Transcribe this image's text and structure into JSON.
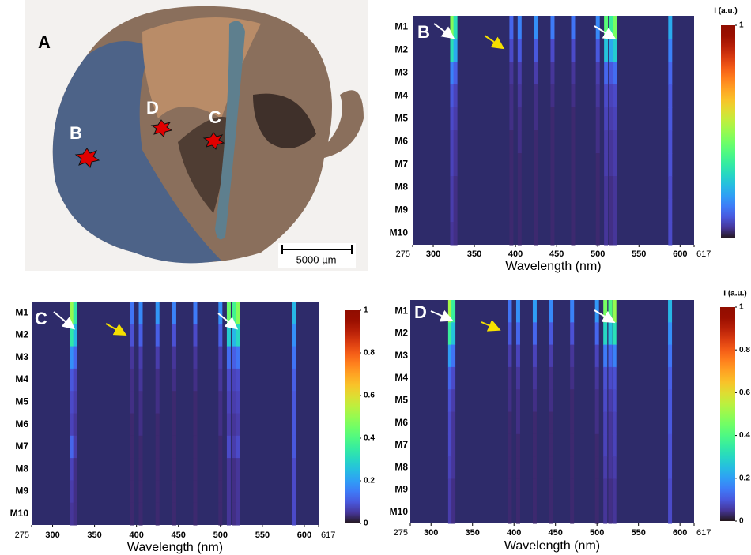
{
  "photo": {
    "panel_label": "A",
    "sites": [
      "B",
      "D",
      "C"
    ],
    "scale_bar": "5000 µm"
  },
  "chart_data": [
    {
      "type": "heatmap",
      "panel_label": "B",
      "x_label": "Wavelength (nm)",
      "colormap": "turbo",
      "categories": [
        "M1",
        "M2",
        "M3",
        "M4",
        "M5",
        "M6",
        "M7",
        "M8",
        "M9",
        "M10"
      ],
      "x": [
        323,
        327,
        395,
        405,
        425,
        445,
        470,
        500,
        510,
        516,
        521,
        588
      ],
      "values": [
        [
          0.48,
          0.32,
          0.12,
          0.16,
          0.18,
          0.15,
          0.14,
          0.17,
          0.42,
          0.36,
          0.46,
          0.22
        ],
        [
          0.32,
          0.22,
          0.08,
          0.1,
          0.1,
          0.08,
          0.08,
          0.1,
          0.26,
          0.22,
          0.28,
          0.16
        ],
        [
          0.16,
          0.11,
          0.05,
          0.06,
          0.06,
          0.05,
          0.05,
          0.06,
          0.12,
          0.1,
          0.13,
          0.12
        ],
        [
          0.1,
          0.07,
          0.04,
          0.05,
          0.04,
          0.04,
          0.04,
          0.05,
          0.08,
          0.07,
          0.08,
          0.1
        ],
        [
          0.08,
          0.06,
          0.04,
          0.04,
          0.04,
          0.03,
          0.03,
          0.04,
          0.07,
          0.06,
          0.07,
          0.1
        ],
        [
          0.07,
          0.05,
          0.03,
          0.04,
          0.03,
          0.03,
          0.03,
          0.04,
          0.06,
          0.05,
          0.06,
          0.09
        ],
        [
          0.07,
          0.05,
          0.03,
          0.03,
          0.03,
          0.03,
          0.03,
          0.03,
          0.06,
          0.05,
          0.06,
          0.09
        ],
        [
          0.06,
          0.04,
          0.03,
          0.03,
          0.03,
          0.03,
          0.03,
          0.03,
          0.05,
          0.04,
          0.05,
          0.08
        ],
        [
          0.06,
          0.04,
          0.03,
          0.03,
          0.03,
          0.03,
          0.03,
          0.03,
          0.05,
          0.04,
          0.05,
          0.08
        ],
        [
          0.05,
          0.04,
          0.03,
          0.03,
          0.03,
          0.03,
          0.03,
          0.03,
          0.05,
          0.04,
          0.05,
          0.08
        ]
      ],
      "xlim": [
        275,
        617
      ],
      "xticks": [
        275,
        300,
        350,
        400,
        450,
        500,
        550,
        600,
        617
      ],
      "colorbar": {
        "label": "I (a.u.)",
        "lim": [
          0,
          1
        ],
        "ticks": [
          1
        ]
      }
    },
    {
      "type": "heatmap",
      "panel_label": "C",
      "x_label": "Wavelength (nm)",
      "colormap": "turbo",
      "categories": [
        "M1",
        "M2",
        "M3",
        "M4",
        "M5",
        "M6",
        "M7",
        "M8",
        "M9",
        "M10"
      ],
      "x": [
        323,
        327,
        395,
        405,
        425,
        445,
        470,
        500,
        510,
        516,
        521,
        588
      ],
      "values": [
        [
          0.5,
          0.34,
          0.14,
          0.17,
          0.19,
          0.16,
          0.15,
          0.18,
          0.44,
          0.38,
          0.48,
          0.24
        ],
        [
          0.34,
          0.24,
          0.09,
          0.11,
          0.11,
          0.09,
          0.08,
          0.11,
          0.28,
          0.24,
          0.3,
          0.18
        ],
        [
          0.18,
          0.12,
          0.05,
          0.06,
          0.06,
          0.05,
          0.05,
          0.06,
          0.13,
          0.11,
          0.14,
          0.14
        ],
        [
          0.1,
          0.07,
          0.04,
          0.05,
          0.04,
          0.04,
          0.04,
          0.05,
          0.08,
          0.07,
          0.08,
          0.11
        ],
        [
          0.08,
          0.06,
          0.04,
          0.04,
          0.04,
          0.03,
          0.03,
          0.04,
          0.07,
          0.06,
          0.07,
          0.1
        ],
        [
          0.07,
          0.05,
          0.03,
          0.04,
          0.03,
          0.03,
          0.03,
          0.04,
          0.06,
          0.05,
          0.06,
          0.1
        ],
        [
          0.12,
          0.06,
          0.03,
          0.03,
          0.03,
          0.03,
          0.03,
          0.03,
          0.08,
          0.06,
          0.08,
          0.1
        ],
        [
          0.07,
          0.04,
          0.03,
          0.03,
          0.03,
          0.03,
          0.03,
          0.03,
          0.05,
          0.04,
          0.05,
          0.08
        ],
        [
          0.06,
          0.04,
          0.03,
          0.03,
          0.03,
          0.03,
          0.03,
          0.03,
          0.05,
          0.04,
          0.05,
          0.08
        ],
        [
          0.05,
          0.04,
          0.03,
          0.03,
          0.03,
          0.03,
          0.03,
          0.03,
          0.05,
          0.04,
          0.05,
          0.08
        ]
      ],
      "xlim": [
        275,
        617
      ],
      "xticks": [
        275,
        300,
        350,
        400,
        450,
        500,
        550,
        600,
        617
      ],
      "colorbar": {
        "lim": [
          0,
          1
        ],
        "ticks": [
          0,
          0.2,
          0.4,
          0.6,
          0.8,
          1
        ]
      }
    },
    {
      "type": "heatmap",
      "panel_label": "D",
      "x_label": "Wavelength (nm)",
      "colormap": "turbo",
      "categories": [
        "M1",
        "M2",
        "M3",
        "M4",
        "M5",
        "M6",
        "M7",
        "M8",
        "M9",
        "M10"
      ],
      "x": [
        323,
        327,
        395,
        405,
        425,
        445,
        470,
        500,
        510,
        516,
        521,
        588
      ],
      "values": [
        [
          0.52,
          0.36,
          0.14,
          0.18,
          0.2,
          0.17,
          0.16,
          0.19,
          0.46,
          0.4,
          0.5,
          0.24
        ],
        [
          0.36,
          0.26,
          0.1,
          0.12,
          0.12,
          0.1,
          0.09,
          0.12,
          0.3,
          0.26,
          0.32,
          0.18
        ],
        [
          0.2,
          0.14,
          0.06,
          0.07,
          0.07,
          0.06,
          0.05,
          0.07,
          0.15,
          0.12,
          0.16,
          0.14
        ],
        [
          0.12,
          0.08,
          0.04,
          0.05,
          0.05,
          0.04,
          0.04,
          0.05,
          0.09,
          0.08,
          0.09,
          0.11
        ],
        [
          0.09,
          0.06,
          0.04,
          0.04,
          0.04,
          0.04,
          0.03,
          0.04,
          0.08,
          0.06,
          0.08,
          0.1
        ],
        [
          0.08,
          0.05,
          0.03,
          0.04,
          0.03,
          0.03,
          0.03,
          0.04,
          0.07,
          0.05,
          0.07,
          0.1
        ],
        [
          0.08,
          0.05,
          0.03,
          0.03,
          0.03,
          0.03,
          0.03,
          0.03,
          0.07,
          0.05,
          0.07,
          0.09
        ],
        [
          0.07,
          0.05,
          0.03,
          0.03,
          0.03,
          0.03,
          0.03,
          0.03,
          0.06,
          0.05,
          0.06,
          0.09
        ],
        [
          0.06,
          0.04,
          0.03,
          0.03,
          0.03,
          0.03,
          0.03,
          0.03,
          0.05,
          0.04,
          0.05,
          0.08
        ],
        [
          0.06,
          0.04,
          0.03,
          0.03,
          0.03,
          0.03,
          0.03,
          0.03,
          0.05,
          0.04,
          0.05,
          0.08
        ]
      ],
      "xlim": [
        275,
        617
      ],
      "xticks": [
        275,
        300,
        350,
        400,
        450,
        500,
        550,
        600,
        617
      ],
      "colorbar": {
        "label": "I (a.u.)",
        "lim": [
          0,
          1
        ],
        "ticks": [
          0,
          0.2,
          0.4,
          0.6,
          0.8,
          1
        ]
      }
    }
  ]
}
